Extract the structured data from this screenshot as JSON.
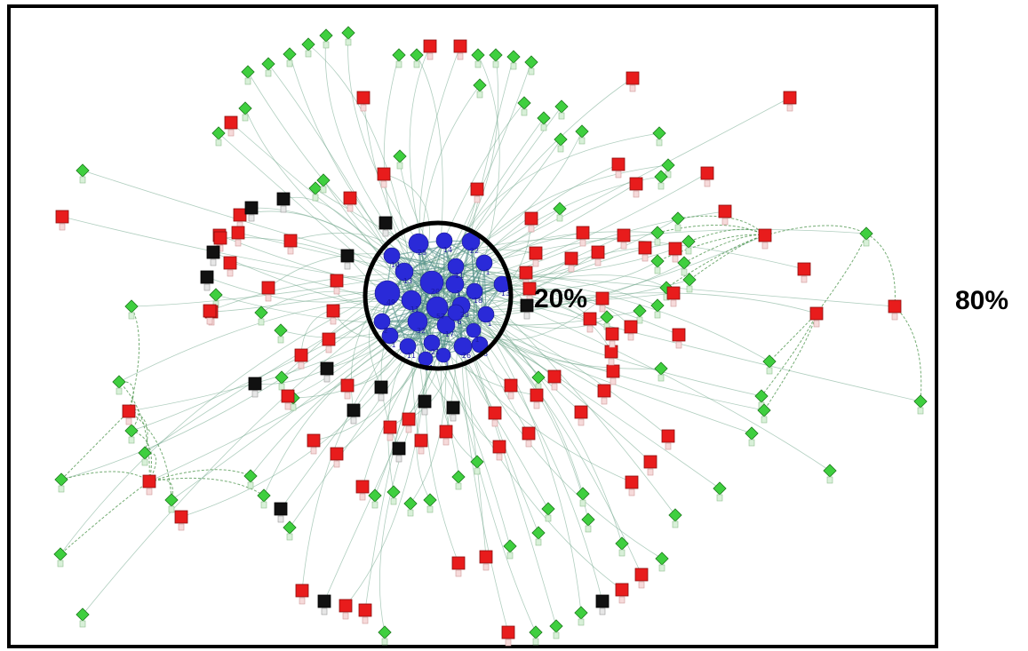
{
  "labels": {
    "core_share": "20%",
    "periphery_share": "80%"
  },
  "colors": {
    "core": "#2a2ad8",
    "peripheral_red": "#e81c1c",
    "peripheral_black": "#111111",
    "leaf_green": "#3fcf3f",
    "edge": "#6fa58a"
  },
  "legend_meaning": {
    "core": "core cluster",
    "periphery": "periphery"
  }
}
